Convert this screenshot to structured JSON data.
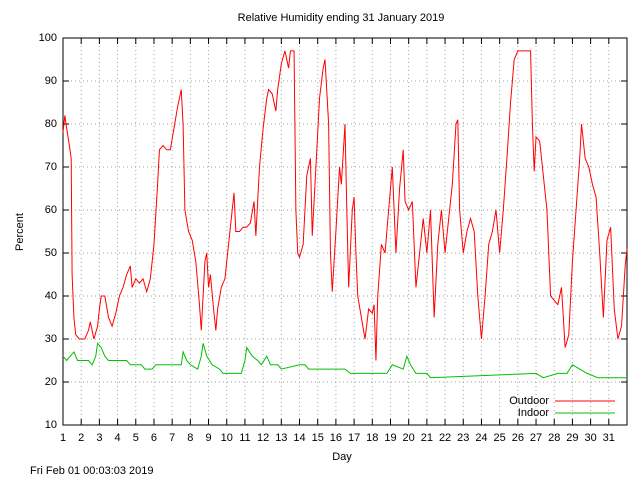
{
  "chart_data": {
    "type": "line",
    "title": "Relative Humidity ending 31 January 2019",
    "xlabel": "Day",
    "ylabel": "Percent",
    "footer": "Fri Feb 01 00:03:03 2019",
    "xlim": [
      1,
      32
    ],
    "ylim": [
      10,
      100
    ],
    "xticks": [
      1,
      2,
      3,
      4,
      5,
      6,
      7,
      8,
      9,
      10,
      11,
      12,
      13,
      14,
      15,
      16,
      17,
      18,
      19,
      20,
      21,
      22,
      23,
      24,
      25,
      26,
      27,
      28,
      29,
      30,
      31
    ],
    "yticks": [
      10,
      20,
      30,
      40,
      50,
      60,
      70,
      80,
      90,
      100
    ],
    "grid": true,
    "legend": "bottom-right",
    "series": [
      {
        "name": "Outdoor",
        "color": "#ff0000",
        "x": [
          1.0,
          1.1,
          1.2,
          1.35,
          1.45,
          1.5,
          1.6,
          1.7,
          1.9,
          2.2,
          2.4,
          2.5,
          2.7,
          2.9,
          3.0,
          3.1,
          3.3,
          3.5,
          3.7,
          3.9,
          4.1,
          4.3,
          4.5,
          4.7,
          4.8,
          5.0,
          5.2,
          5.4,
          5.6,
          5.8,
          6.0,
          6.2,
          6.3,
          6.5,
          6.7,
          6.9,
          7.1,
          7.3,
          7.5,
          7.6,
          7.7,
          7.9,
          8.1,
          8.3,
          8.5,
          8.6,
          8.7,
          8.8,
          8.9,
          9.0,
          9.1,
          9.3,
          9.4,
          9.5,
          9.7,
          9.9,
          10.1,
          10.3,
          10.4,
          10.5,
          10.7,
          10.9,
          11.1,
          11.3,
          11.5,
          11.6,
          11.8,
          12.0,
          12.2,
          12.3,
          12.5,
          12.7,
          12.8,
          13.0,
          13.2,
          13.4,
          13.5,
          13.7,
          13.8,
          13.9,
          14.0,
          14.2,
          14.4,
          14.6,
          14.7,
          14.9,
          15.1,
          15.3,
          15.4,
          15.6,
          15.7,
          15.8,
          16.0,
          16.2,
          16.3,
          16.5,
          16.6,
          16.7,
          16.9,
          17.0,
          17.1,
          17.2,
          17.4,
          17.6,
          17.8,
          18.0,
          18.1,
          18.2,
          18.3,
          18.5,
          18.7,
          18.9,
          19.1,
          19.2,
          19.3,
          19.5,
          19.7,
          19.8,
          20.0,
          20.2,
          20.4,
          20.6,
          20.8,
          21.0,
          21.2,
          21.4,
          21.6,
          21.8,
          22.0,
          22.2,
          22.4,
          22.6,
          22.7,
          22.8,
          23.0,
          23.2,
          23.4,
          23.6,
          23.8,
          24.0,
          24.2,
          24.4,
          24.6,
          24.8,
          25.0,
          25.2,
          25.4,
          25.6,
          25.8,
          26.0,
          26.4,
          26.7,
          26.8,
          26.9,
          27.0,
          27.2,
          27.4,
          27.6,
          27.8,
          28.0,
          28.2,
          28.4,
          28.6,
          28.8,
          29.0,
          29.2,
          29.4,
          29.5,
          29.7,
          29.9,
          30.1,
          30.3,
          30.5,
          30.7,
          30.9,
          31.1,
          31.3,
          31.5,
          31.7,
          31.9,
          32.0
        ],
        "values": [
          78,
          82,
          79,
          75,
          72,
          45,
          35,
          31,
          30,
          30,
          32,
          34,
          30,
          33,
          37,
          40,
          40,
          35,
          33,
          36,
          40,
          42,
          45,
          47,
          42,
          44,
          43,
          44,
          41,
          44,
          52,
          66,
          74,
          75,
          74,
          74,
          79,
          84,
          88,
          80,
          60,
          55,
          53,
          48,
          38,
          32,
          40,
          48,
          50,
          42,
          45,
          36,
          32,
          37,
          42,
          44,
          52,
          60,
          64,
          55,
          55,
          56,
          56,
          57,
          62,
          54,
          70,
          79,
          86,
          88,
          87,
          83,
          88,
          94,
          97,
          93,
          97,
          97,
          60,
          50,
          49,
          52,
          68,
          72,
          54,
          70,
          86,
          93,
          95,
          80,
          50,
          41,
          55,
          70,
          66,
          80,
          60,
          42,
          60,
          63,
          50,
          40,
          35,
          30,
          37,
          36,
          38,
          25,
          40,
          52,
          50,
          60,
          70,
          60,
          50,
          65,
          74,
          62,
          60,
          62,
          42,
          50,
          58,
          50,
          60,
          35,
          52,
          60,
          50,
          58,
          66,
          80,
          81,
          60,
          50,
          55,
          58,
          55,
          40,
          30,
          40,
          52,
          55,
          60,
          50,
          60,
          72,
          85,
          95,
          97,
          97,
          97,
          80,
          69,
          77,
          76,
          68,
          60,
          40,
          39,
          38,
          42,
          28,
          31,
          48,
          60,
          72,
          80,
          72,
          70,
          66,
          63,
          50,
          35,
          53,
          56,
          37,
          30,
          33,
          47,
          51
        ]
      },
      {
        "name": "Indoor",
        "color": "#00c000",
        "x": [
          1.0,
          1.2,
          1.4,
          1.6,
          1.8,
          2.4,
          2.6,
          2.8,
          2.9,
          3.1,
          3.3,
          3.5,
          4.5,
          4.7,
          5.3,
          5.5,
          5.9,
          6.1,
          7.5,
          7.6,
          7.8,
          8.0,
          8.4,
          8.6,
          8.7,
          8.9,
          9.2,
          9.6,
          9.8,
          10.8,
          11.0,
          11.1,
          11.4,
          11.7,
          11.9,
          12.2,
          12.4,
          12.8,
          13.0,
          14.0,
          14.3,
          14.5,
          16.5,
          16.8,
          18.8,
          19.1,
          19.7,
          19.9,
          20.1,
          20.4,
          21.0,
          21.2,
          27.0,
          27.4,
          28.2,
          28.7,
          29.0,
          29.4,
          29.8,
          30.4,
          32.0
        ],
        "values": [
          26,
          25,
          26,
          27,
          25,
          25,
          24,
          26,
          29,
          28,
          26,
          25,
          25,
          24,
          24,
          23,
          23,
          24,
          24,
          27,
          25,
          24,
          23,
          26,
          29,
          26,
          24,
          23,
          22,
          22,
          25,
          28,
          26,
          25,
          24,
          26,
          24,
          24,
          23,
          24,
          24,
          23,
          23,
          22,
          22,
          24,
          23,
          26,
          24,
          22,
          22,
          21,
          22,
          21,
          22,
          22,
          24,
          23,
          22,
          21,
          21
        ]
      }
    ]
  }
}
